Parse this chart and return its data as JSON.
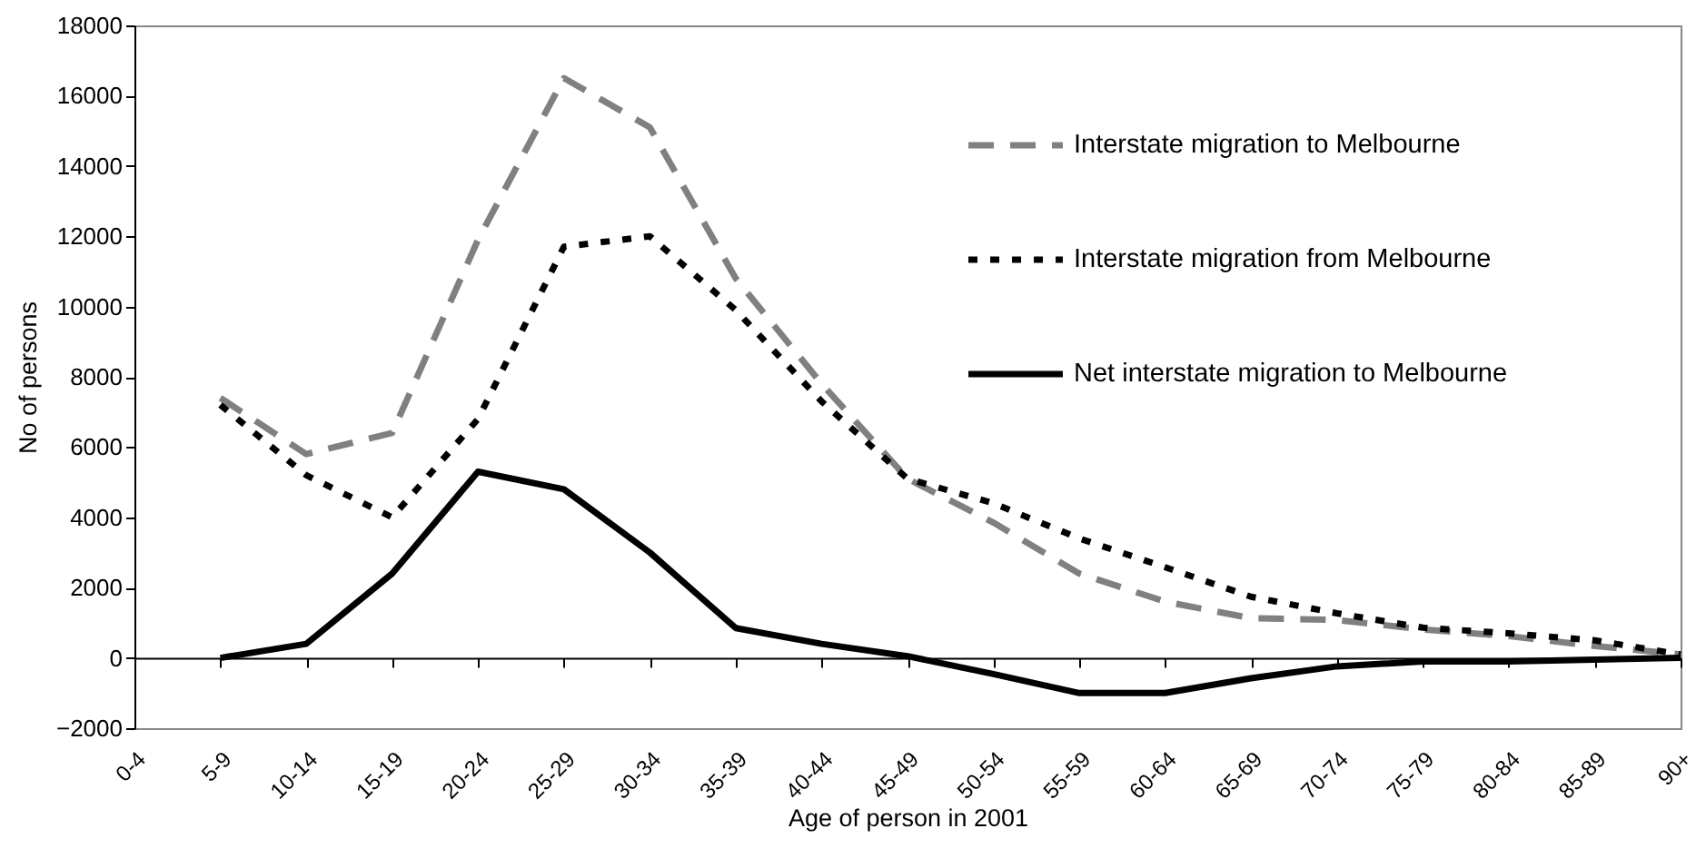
{
  "chart_data": {
    "type": "line",
    "xlabel": "Age of person in 2001",
    "ylabel": "No of persons",
    "categories": [
      "0-4",
      "5-9",
      "10-14",
      "15-19",
      "20-24",
      "25-29",
      "30-34",
      "35-39",
      "40-44",
      "45-49",
      "50-54",
      "55-59",
      "60-64",
      "65-69",
      "70-74",
      "75-79",
      "80-84",
      "85-89",
      "90+"
    ],
    "series": [
      {
        "name": "Interstate migration to Melbourne",
        "color": "#808080",
        "line_style": "dashed",
        "values": [
          null,
          7400,
          5800,
          6400,
          11900,
          16500,
          15100,
          10800,
          7800,
          5100,
          3850,
          2400,
          1600,
          1130,
          1080,
          810,
          620,
          340,
          100
        ]
      },
      {
        "name": "Interstate migration from Melbourne",
        "color": "#000000",
        "line_style": "dotted",
        "values": [
          null,
          7200,
          5200,
          4000,
          6800,
          11700,
          12000,
          9900,
          7300,
          5100,
          4400,
          3400,
          2580,
          1740,
          1270,
          860,
          700,
          500,
          100
        ]
      },
      {
        "name": "Net interstate migration to Melbourne",
        "color": "#000000",
        "line_style": "solid",
        "values": [
          null,
          0,
          400,
          2400,
          5300,
          4800,
          3000,
          850,
          400,
          50,
          -460,
          -1000,
          -1000,
          -580,
          -240,
          -100,
          -100,
          -50,
          0
        ]
      }
    ],
    "ylim": [
      -2000,
      18000
    ],
    "yticks": [
      -2000,
      0,
      2000,
      4000,
      6000,
      8000,
      10000,
      12000,
      14000,
      16000,
      18000
    ],
    "legend": "top right"
  }
}
